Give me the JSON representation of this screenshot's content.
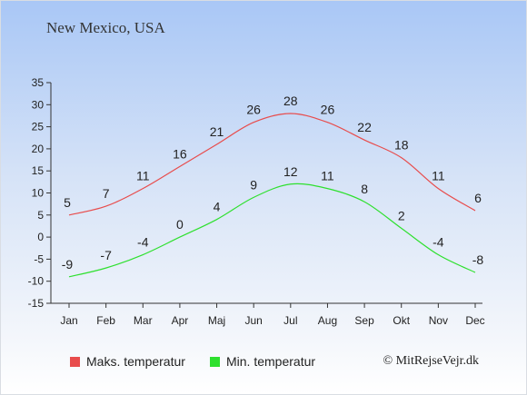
{
  "chart_data": {
    "type": "line",
    "title": "New Mexico, USA",
    "categories": [
      "Jan",
      "Feb",
      "Mar",
      "Apr",
      "Maj",
      "Jun",
      "Jul",
      "Aug",
      "Sep",
      "Okt",
      "Nov",
      "Dec"
    ],
    "series": [
      {
        "name": "Maks. temperatur",
        "color": "#e84c4c",
        "values": [
          5,
          7,
          11,
          16,
          21,
          26,
          28,
          26,
          22,
          18,
          11,
          6
        ]
      },
      {
        "name": "Min. temperatur",
        "color": "#2ee02e",
        "values": [
          -9,
          -7,
          -4,
          0,
          4,
          9,
          12,
          11,
          8,
          2,
          -4,
          -8
        ]
      }
    ],
    "ylim": [
      -15,
      35
    ],
    "yticks": [
      -15,
      -10,
      -5,
      0,
      5,
      10,
      15,
      20,
      25,
      30,
      35
    ],
    "grid": false,
    "legend_position": "bottom-left"
  },
  "credit": "© MitRejseVejr.dk"
}
